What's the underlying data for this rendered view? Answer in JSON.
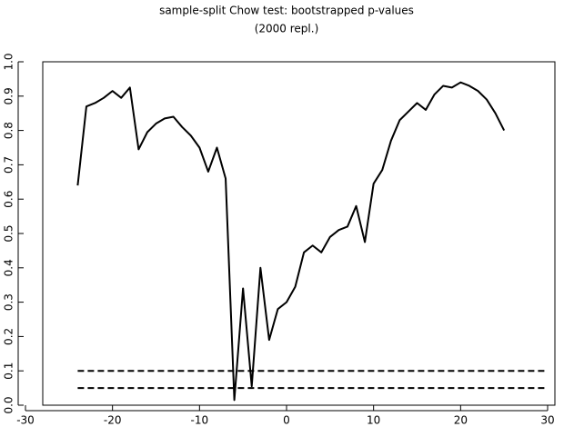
{
  "chart_data": {
    "type": "line",
    "title": "sample-split Chow test: bootstrapped p-values",
    "subtitle": "(2000 repl.)",
    "x": [
      -24,
      -23,
      -22,
      -21,
      -20,
      -19,
      -18,
      -17,
      -16,
      -15,
      -14,
      -13,
      -12,
      -11,
      -10,
      -9,
      -8,
      -7,
      -6,
      -5,
      -4,
      -3,
      -2,
      -1,
      0,
      1,
      2,
      3,
      4,
      5,
      6,
      7,
      8,
      9,
      10,
      11,
      12,
      13,
      14,
      15,
      16,
      17,
      18,
      19,
      20,
      21,
      22,
      23,
      24,
      25
    ],
    "values": [
      0.64,
      0.87,
      0.88,
      0.895,
      0.915,
      0.895,
      0.925,
      0.745,
      0.795,
      0.82,
      0.835,
      0.84,
      0.81,
      0.785,
      0.75,
      0.68,
      0.75,
      0.66,
      0.015,
      0.34,
      0.055,
      0.4,
      0.19,
      0.28,
      0.3,
      0.345,
      0.445,
      0.465,
      0.445,
      0.49,
      0.51,
      0.52,
      0.58,
      0.475,
      0.645,
      0.685,
      0.77,
      0.83,
      0.855,
      0.88,
      0.86,
      0.905,
      0.93,
      0.925,
      0.94,
      0.93,
      0.915,
      0.89,
      0.85,
      0.8
    ],
    "color": "#000000",
    "hlines": [
      0.1,
      0.05
    ],
    "hline_x": [
      -24,
      30
    ],
    "xlim": [
      -30,
      30
    ],
    "xticks": [
      -30,
      -20,
      -10,
      0,
      10,
      20,
      30
    ],
    "ylim": [
      0,
      1
    ],
    "yticks": [
      {
        "value": 0,
        "label": "0.0"
      },
      0.1,
      0.2,
      0.3,
      0.4,
      0.5,
      0.6,
      0.7,
      0.8,
      0.9,
      {
        "value": 1,
        "label": "1.0"
      }
    ]
  }
}
